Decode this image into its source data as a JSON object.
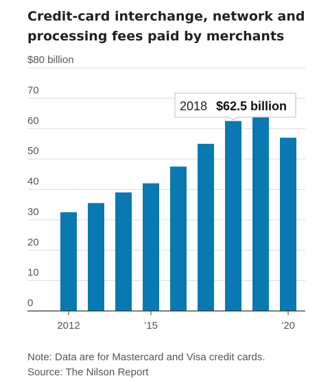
{
  "title": "Credit-card interchange, network and processing fees paid by merchants",
  "chart_data": {
    "type": "bar",
    "title": "Credit-card interchange, network and processing fees paid by merchants",
    "ylabel": "$80 billion",
    "xlabel": "",
    "categories": [
      "2012",
      "2013",
      "2014",
      "2015",
      "2016",
      "2017",
      "2018",
      "2019",
      "2020"
    ],
    "values": [
      32.5,
      35.5,
      39,
      42,
      47.5,
      55,
      62.5,
      68,
      57
    ],
    "ylim": [
      0,
      80
    ],
    "y_ticks": [
      "0",
      "10",
      "20",
      "30",
      "40",
      "50",
      "60",
      "70"
    ],
    "y_top_label": "$80 billion",
    "x_tick_labels": [
      {
        "category": "2012",
        "label": "2012"
      },
      {
        "category": "2015",
        "label": "’15"
      },
      {
        "category": "2020",
        "label": "’20"
      }
    ],
    "grid": true,
    "bar_color": "#0a79b1",
    "annotation": {
      "category": "2018",
      "year_text": "2018",
      "value_text": "$62.5 billion"
    }
  },
  "footer": {
    "note": "Note: Data are for Mastercard and Visa credit cards.",
    "source": "Source: The Nilson Report"
  }
}
